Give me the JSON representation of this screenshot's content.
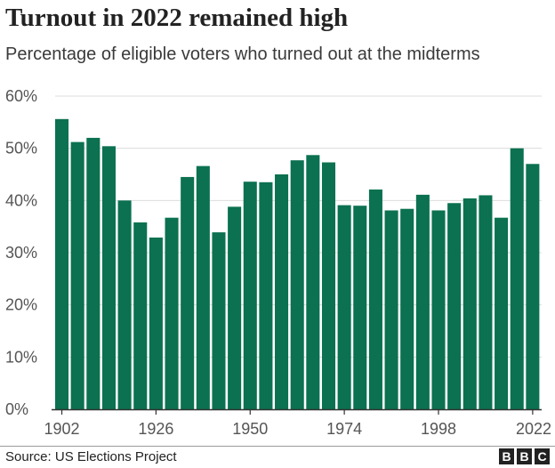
{
  "header": {
    "title": "Turnout in 2022 remained high",
    "subtitle": "Percentage of eligible voters who turned out at the midterms"
  },
  "footer": {
    "source": "Source: US Elections Project",
    "logo": [
      "B",
      "B",
      "C"
    ]
  },
  "colors": {
    "bar": "#0b7150",
    "grid": "#dcdcdc",
    "axis": "#333333",
    "tick_label": "#555555"
  },
  "chart_data": {
    "type": "bar",
    "title": "Turnout in 2022 remained high",
    "subtitle": "Percentage of eligible voters who turned out at the midterms",
    "xlabel": "",
    "ylabel": "",
    "ylim": [
      0,
      60
    ],
    "y_ticks": [
      "0%",
      "10%",
      "20%",
      "30%",
      "40%",
      "50%",
      "60%"
    ],
    "x_tick_labels": [
      "1902",
      "1926",
      "1950",
      "1974",
      "1998",
      "2022"
    ],
    "grid": true,
    "legend": "none",
    "categories": [
      1902,
      1906,
      1910,
      1914,
      1918,
      1922,
      1926,
      1930,
      1934,
      1938,
      1942,
      1946,
      1950,
      1954,
      1958,
      1962,
      1966,
      1970,
      1974,
      1978,
      1982,
      1986,
      1990,
      1994,
      1998,
      2002,
      2006,
      2010,
      2014,
      2018,
      2022
    ],
    "values": [
      55.6,
      51.2,
      52.0,
      50.4,
      40.0,
      35.8,
      32.9,
      36.7,
      44.5,
      46.6,
      33.9,
      38.8,
      43.6,
      43.5,
      45.0,
      47.7,
      48.7,
      47.3,
      39.1,
      39.0,
      42.1,
      38.1,
      38.4,
      41.1,
      38.1,
      39.5,
      40.4,
      41.0,
      36.7,
      50.0,
      47.0
    ]
  }
}
